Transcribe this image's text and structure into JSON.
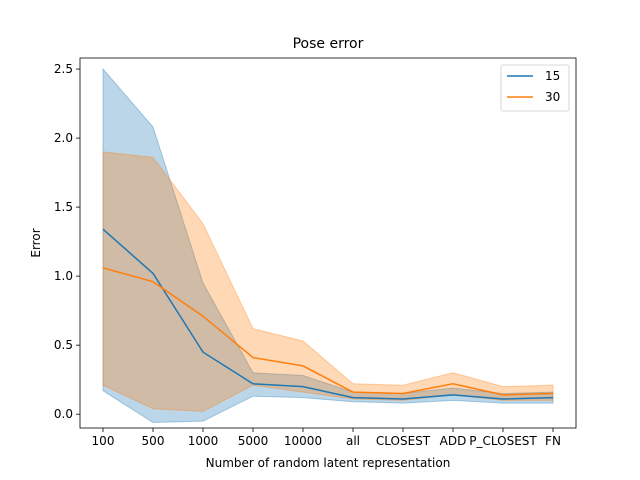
{
  "chart_data": {
    "type": "line",
    "title": "Pose error",
    "xlabel": "Number of random latent representation",
    "ylabel": "Error",
    "categories": [
      "100",
      "500",
      "1000",
      "5000",
      "10000",
      "all",
      "CLOSEST",
      "ADD",
      "P_CLOSEST",
      "FN"
    ],
    "ylim": [
      -0.1,
      2.58
    ],
    "yticks": [
      "0.0",
      "0.5",
      "1.0",
      "1.5",
      "2.0",
      "2.5"
    ],
    "legend_position": "top-right",
    "grid": false,
    "series": [
      {
        "name": "15",
        "color": "#1f77b4",
        "values": [
          1.34,
          1.02,
          0.45,
          0.22,
          0.2,
          0.12,
          0.11,
          0.14,
          0.11,
          0.12
        ],
        "lower": [
          0.17,
          -0.06,
          -0.05,
          0.13,
          0.12,
          0.09,
          0.08,
          0.1,
          0.08,
          0.08
        ],
        "upper": [
          2.5,
          2.08,
          0.95,
          0.3,
          0.28,
          0.16,
          0.15,
          0.19,
          0.15,
          0.16
        ]
      },
      {
        "name": "30",
        "color": "#ff7f0e",
        "values": [
          1.06,
          0.96,
          0.71,
          0.41,
          0.35,
          0.16,
          0.15,
          0.22,
          0.14,
          0.15
        ],
        "lower": [
          0.21,
          0.04,
          0.02,
          0.21,
          0.16,
          0.11,
          0.1,
          0.14,
          0.1,
          0.1
        ],
        "upper": [
          1.9,
          1.86,
          1.38,
          0.62,
          0.53,
          0.22,
          0.21,
          0.3,
          0.2,
          0.21
        ]
      }
    ]
  }
}
